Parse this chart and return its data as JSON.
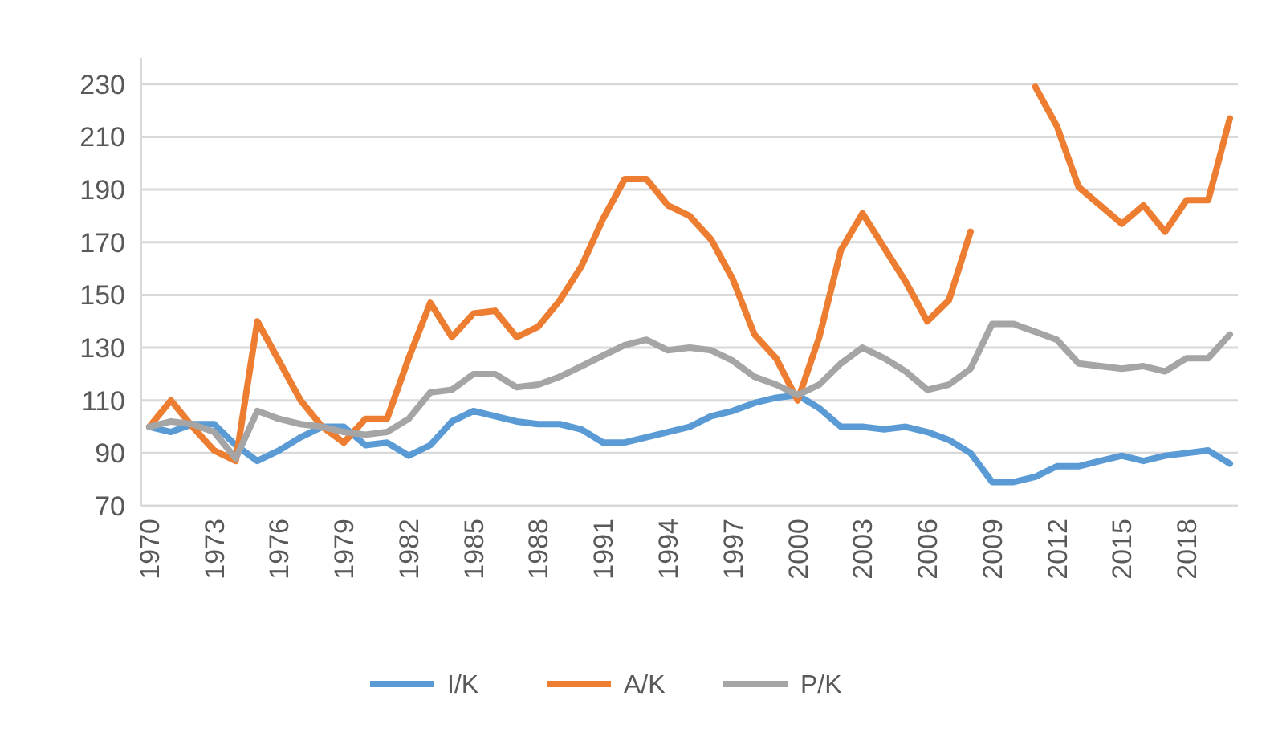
{
  "chart_data": {
    "type": "line",
    "categories": [
      "1970",
      null,
      null,
      "1973",
      null,
      null,
      "1976",
      null,
      null,
      "1979",
      null,
      null,
      "1982",
      null,
      null,
      "1985",
      null,
      null,
      "1988",
      null,
      null,
      "1991",
      null,
      null,
      "1994",
      null,
      null,
      "1997",
      null,
      null,
      "2000",
      null,
      null,
      "2003",
      null,
      null,
      "2006",
      null,
      null,
      "2009",
      null,
      null,
      "2012",
      null,
      null,
      "2015",
      null,
      null,
      "2018",
      null,
      null
    ],
    "series": [
      {
        "name": "I/K",
        "color": "#5b9bd5",
        "values": [
          100,
          98,
          101,
          101,
          93,
          87,
          91,
          96,
          100,
          100,
          93,
          94,
          89,
          93,
          102,
          106,
          104,
          102,
          101,
          101,
          99,
          94,
          94,
          96,
          98,
          100,
          104,
          106,
          109,
          111,
          112,
          107,
          100,
          100,
          99,
          100,
          98,
          95,
          90,
          79,
          79,
          81,
          85,
          85,
          87,
          89,
          87,
          89,
          90,
          91,
          86
        ]
      },
      {
        "name": "A/K",
        "color": "#ed7d31",
        "values": [
          100,
          110,
          100,
          91,
          87,
          140,
          125,
          110,
          100,
          94,
          103,
          103,
          126,
          147,
          134,
          143,
          144,
          134,
          138,
          148,
          161,
          179,
          194,
          194,
          184,
          180,
          171,
          156,
          135,
          126,
          110,
          134,
          167,
          181,
          168,
          155,
          140,
          148,
          174,
          null,
          null,
          229,
          214,
          191,
          184,
          177,
          184,
          174,
          186,
          186,
          217
        ]
      },
      {
        "name": "P/K",
        "color": "#a5a5a5",
        "values": [
          100,
          102,
          101,
          98,
          88,
          106,
          103,
          101,
          100,
          98,
          97,
          98,
          103,
          113,
          114,
          120,
          120,
          115,
          116,
          119,
          123,
          127,
          131,
          133,
          129,
          130,
          129,
          125,
          119,
          116,
          112,
          116,
          124,
          130,
          126,
          121,
          114,
          116,
          122,
          139,
          139,
          136,
          133,
          124,
          123,
          122,
          123,
          121,
          126,
          126,
          135
        ]
      }
    ],
    "ylim": [
      70,
      240
    ],
    "yticks": [
      70,
      90,
      110,
      130,
      150,
      170,
      190,
      210,
      230
    ],
    "grid": "y",
    "legend": "bottom",
    "line_style": "solid",
    "marker": "none"
  }
}
